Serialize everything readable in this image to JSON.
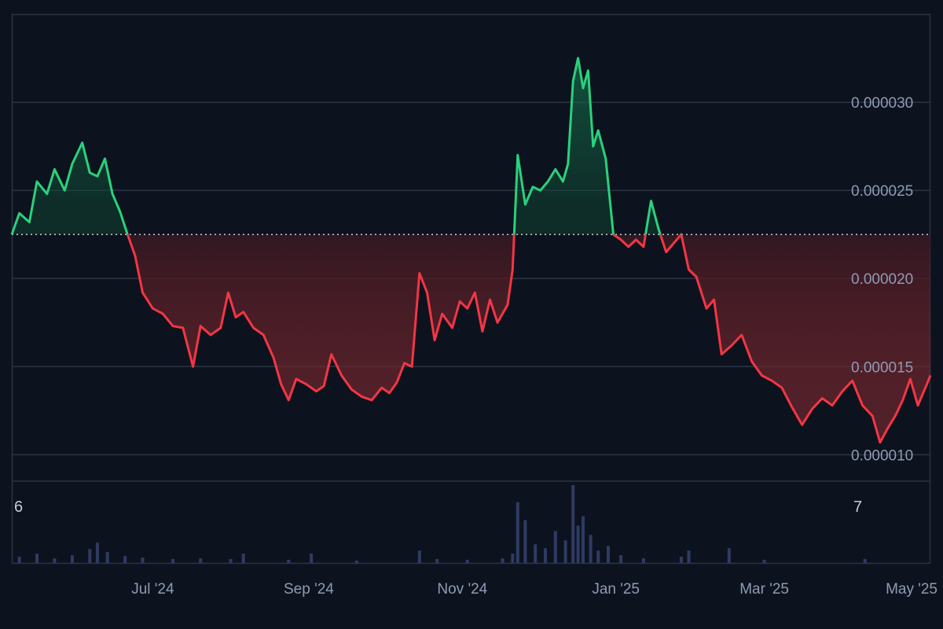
{
  "chart_data": {
    "type": "area",
    "baseline": 2.25e-05,
    "y_axis": {
      "ticks": [
        1e-05,
        1.5e-05,
        2e-05,
        2.5e-05,
        3e-05
      ],
      "tick_labels": [
        "0.000010",
        "0.000015",
        "0.000020",
        "0.000025",
        "0.000030"
      ],
      "range": [
        8.5e-06,
        3.5e-05
      ],
      "position": "right"
    },
    "x_axis": {
      "labels": [
        "Jul '24",
        "Sep '24",
        "Nov '24",
        "Jan '25",
        "Mar '25",
        "May '25"
      ],
      "label_dates": [
        "2024-07-01",
        "2024-09-01",
        "2024-11-01",
        "2025-01-01",
        "2025-03-01",
        "2025-05-01"
      ],
      "range": [
        "2024-05-06",
        "2025-05-06"
      ]
    },
    "grid": "horizontal",
    "colors": {
      "up": "#2ad17c",
      "down": "#f23645",
      "grid": "#2a3445",
      "background": "#0d131e",
      "volume": "#2e3b64",
      "baseline": "#c8cdd6"
    },
    "price_series": {
      "points": [
        [
          "2024-05-06",
          2.25e-05
        ],
        [
          "2024-05-09",
          2.37e-05
        ],
        [
          "2024-05-13",
          2.32e-05
        ],
        [
          "2024-05-16",
          2.55e-05
        ],
        [
          "2024-05-20",
          2.48e-05
        ],
        [
          "2024-05-23",
          2.62e-05
        ],
        [
          "2024-05-27",
          2.5e-05
        ],
        [
          "2024-05-30",
          2.65e-05
        ],
        [
          "2024-06-03",
          2.77e-05
        ],
        [
          "2024-06-06",
          2.6e-05
        ],
        [
          "2024-06-09",
          2.58e-05
        ],
        [
          "2024-06-12",
          2.68e-05
        ],
        [
          "2024-06-15",
          2.48e-05
        ],
        [
          "2024-06-18",
          2.38e-05
        ],
        [
          "2024-06-21",
          2.25e-05
        ],
        [
          "2024-06-24",
          2.13e-05
        ],
        [
          "2024-06-27",
          1.92e-05
        ],
        [
          "2024-07-01",
          1.83e-05
        ],
        [
          "2024-07-05",
          1.8e-05
        ],
        [
          "2024-07-09",
          1.73e-05
        ],
        [
          "2024-07-13",
          1.72e-05
        ],
        [
          "2024-07-17",
          1.5e-05
        ],
        [
          "2024-07-20",
          1.73e-05
        ],
        [
          "2024-07-24",
          1.68e-05
        ],
        [
          "2024-07-28",
          1.72e-05
        ],
        [
          "2024-07-31",
          1.92e-05
        ],
        [
          "2024-08-03",
          1.78e-05
        ],
        [
          "2024-08-06",
          1.81e-05
        ],
        [
          "2024-08-10",
          1.72e-05
        ],
        [
          "2024-08-14",
          1.68e-05
        ],
        [
          "2024-08-18",
          1.55e-05
        ],
        [
          "2024-08-21",
          1.4e-05
        ],
        [
          "2024-08-24",
          1.31e-05
        ],
        [
          "2024-08-27",
          1.43e-05
        ],
        [
          "2024-08-31",
          1.4e-05
        ],
        [
          "2024-09-04",
          1.36e-05
        ],
        [
          "2024-09-07",
          1.39e-05
        ],
        [
          "2024-09-10",
          1.57e-05
        ],
        [
          "2024-09-14",
          1.45e-05
        ],
        [
          "2024-09-18",
          1.37e-05
        ],
        [
          "2024-09-22",
          1.33e-05
        ],
        [
          "2024-09-26",
          1.31e-05
        ],
        [
          "2024-09-30",
          1.38e-05
        ],
        [
          "2024-10-03",
          1.35e-05
        ],
        [
          "2024-10-06",
          1.41e-05
        ],
        [
          "2024-10-09",
          1.52e-05
        ],
        [
          "2024-10-12",
          1.5e-05
        ],
        [
          "2024-10-15",
          2.03e-05
        ],
        [
          "2024-10-18",
          1.92e-05
        ],
        [
          "2024-10-21",
          1.65e-05
        ],
        [
          "2024-10-24",
          1.8e-05
        ],
        [
          "2024-10-28",
          1.72e-05
        ],
        [
          "2024-10-31",
          1.87e-05
        ],
        [
          "2024-11-03",
          1.83e-05
        ],
        [
          "2024-11-06",
          1.92e-05
        ],
        [
          "2024-11-09",
          1.7e-05
        ],
        [
          "2024-11-12",
          1.88e-05
        ],
        [
          "2024-11-15",
          1.75e-05
        ],
        [
          "2024-11-19",
          1.85e-05
        ],
        [
          "2024-11-21",
          2.05e-05
        ],
        [
          "2024-11-23",
          2.7e-05
        ],
        [
          "2024-11-26",
          2.42e-05
        ],
        [
          "2024-11-29",
          2.52e-05
        ],
        [
          "2024-12-02",
          2.5e-05
        ],
        [
          "2024-12-05",
          2.55e-05
        ],
        [
          "2024-12-08",
          2.62e-05
        ],
        [
          "2024-12-11",
          2.55e-05
        ],
        [
          "2024-12-13",
          2.65e-05
        ],
        [
          "2024-12-15",
          3.12e-05
        ],
        [
          "2024-12-17",
          3.25e-05
        ],
        [
          "2024-12-19",
          3.08e-05
        ],
        [
          "2024-12-21",
          3.18e-05
        ],
        [
          "2024-12-23",
          2.75e-05
        ],
        [
          "2024-12-25",
          2.84e-05
        ],
        [
          "2024-12-28",
          2.68e-05
        ],
        [
          "2024-12-31",
          2.25e-05
        ],
        [
          "2025-01-03",
          2.22e-05
        ],
        [
          "2025-01-06",
          2.18e-05
        ],
        [
          "2025-01-09",
          2.22e-05
        ],
        [
          "2025-01-12",
          2.18e-05
        ],
        [
          "2025-01-15",
          2.44e-05
        ],
        [
          "2025-01-18",
          2.28e-05
        ],
        [
          "2025-01-21",
          2.15e-05
        ],
        [
          "2025-01-24",
          2.2e-05
        ],
        [
          "2025-01-27",
          2.25e-05
        ],
        [
          "2025-01-30",
          2.05e-05
        ],
        [
          "2025-02-02",
          2.01e-05
        ],
        [
          "2025-02-06",
          1.83e-05
        ],
        [
          "2025-02-09",
          1.88e-05
        ],
        [
          "2025-02-12",
          1.57e-05
        ],
        [
          "2025-02-16",
          1.62e-05
        ],
        [
          "2025-02-20",
          1.68e-05
        ],
        [
          "2025-02-24",
          1.53e-05
        ],
        [
          "2025-02-28",
          1.45e-05
        ],
        [
          "2025-03-04",
          1.42e-05
        ],
        [
          "2025-03-08",
          1.38e-05
        ],
        [
          "2025-03-12",
          1.27e-05
        ],
        [
          "2025-03-16",
          1.17e-05
        ],
        [
          "2025-03-20",
          1.26e-05
        ],
        [
          "2025-03-24",
          1.32e-05
        ],
        [
          "2025-03-28",
          1.28e-05
        ],
        [
          "2025-04-01",
          1.36e-05
        ],
        [
          "2025-04-05",
          1.42e-05
        ],
        [
          "2025-04-09",
          1.28e-05
        ],
        [
          "2025-04-13",
          1.22e-05
        ],
        [
          "2025-04-16",
          1.07e-05
        ],
        [
          "2025-04-19",
          1.15e-05
        ],
        [
          "2025-04-22",
          1.22e-05
        ],
        [
          "2025-04-25",
          1.31e-05
        ],
        [
          "2025-04-28",
          1.43e-05
        ],
        [
          "2025-05-01",
          1.28e-05
        ],
        [
          "2025-05-04",
          1.38e-05
        ],
        [
          "2025-05-06",
          1.45e-05
        ]
      ]
    },
    "volume_series": {
      "labels": {
        "left": "6",
        "right": "7"
      },
      "range": [
        0,
        1.05
      ],
      "bars": [
        [
          "2024-05-09",
          0.08
        ],
        [
          "2024-05-16",
          0.12
        ],
        [
          "2024-05-23",
          0.06
        ],
        [
          "2024-05-30",
          0.1
        ],
        [
          "2024-06-06",
          0.18
        ],
        [
          "2024-06-09",
          0.26
        ],
        [
          "2024-06-13",
          0.14
        ],
        [
          "2024-06-20",
          0.09
        ],
        [
          "2024-06-27",
          0.07
        ],
        [
          "2024-07-09",
          0.05
        ],
        [
          "2024-07-20",
          0.06
        ],
        [
          "2024-08-01",
          0.05
        ],
        [
          "2024-08-06",
          0.12
        ],
        [
          "2024-08-24",
          0.04
        ],
        [
          "2024-09-02",
          0.12
        ],
        [
          "2024-09-20",
          0.03
        ],
        [
          "2024-10-15",
          0.16
        ],
        [
          "2024-10-22",
          0.05
        ],
        [
          "2024-11-03",
          0.04
        ],
        [
          "2024-11-17",
          0.06
        ],
        [
          "2024-11-21",
          0.12
        ],
        [
          "2024-11-23",
          0.78
        ],
        [
          "2024-11-26",
          0.55
        ],
        [
          "2024-11-30",
          0.24
        ],
        [
          "2024-12-04",
          0.19
        ],
        [
          "2024-12-08",
          0.41
        ],
        [
          "2024-12-12",
          0.29
        ],
        [
          "2024-12-15",
          1.0
        ],
        [
          "2024-12-17",
          0.48
        ],
        [
          "2024-12-19",
          0.6
        ],
        [
          "2024-12-22",
          0.36
        ],
        [
          "2024-12-25",
          0.16
        ],
        [
          "2024-12-29",
          0.22
        ],
        [
          "2025-01-03",
          0.1
        ],
        [
          "2025-01-12",
          0.06
        ],
        [
          "2025-01-27",
          0.08
        ],
        [
          "2025-01-30",
          0.16
        ],
        [
          "2025-02-15",
          0.19
        ],
        [
          "2025-03-01",
          0.04
        ],
        [
          "2025-04-10",
          0.05
        ]
      ]
    }
  }
}
